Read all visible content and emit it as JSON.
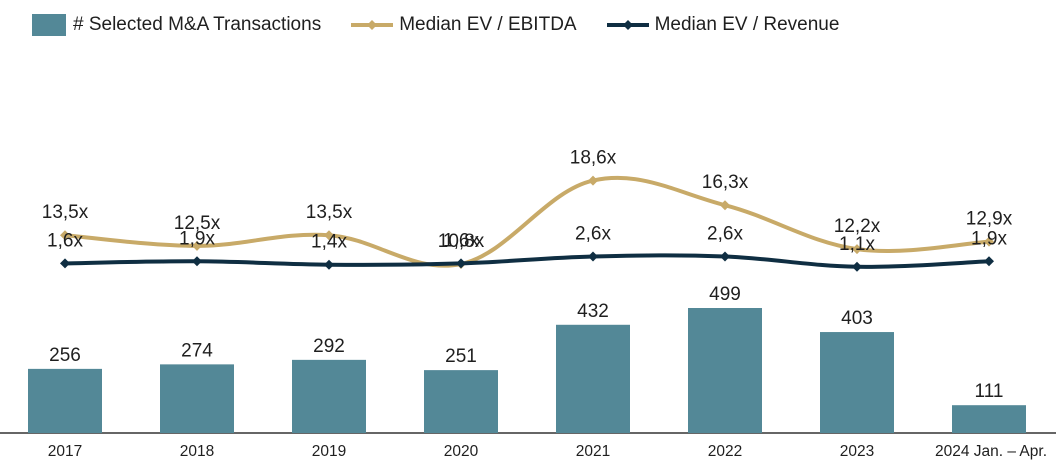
{
  "legend": {
    "bars_label": "# Selected M&A Transactions",
    "ebitda_label": "Median EV / EBITDA",
    "revenue_label": "Median EV / Revenue"
  },
  "colors": {
    "bars": "#538897",
    "ebitda": "#C8AA68",
    "revenue": "#0F2E42",
    "axis": "#333333",
    "text": "#1f1f1f"
  },
  "chart_data": {
    "type": "bar",
    "categories": [
      "2017",
      "2018",
      "2019",
      "2020",
      "2021",
      "2022",
      "2023",
      "2024 Jan. – Apr."
    ],
    "series": [
      {
        "name": "# Selected M&A Transactions",
        "type": "bar",
        "values": [
          256,
          274,
          292,
          251,
          432,
          499,
          403,
          111
        ],
        "labels": [
          "256",
          "274",
          "292",
          "251",
          "432",
          "499",
          "403",
          "111"
        ]
      },
      {
        "name": "Median EV / EBITDA",
        "type": "line",
        "values": [
          13.5,
          12.5,
          13.5,
          10.8,
          18.6,
          16.3,
          12.2,
          12.9
        ],
        "labels": [
          "13,5x",
          "12,5x",
          "13,5x",
          "10,8x",
          "18,6x",
          "16,3x",
          "12,2x",
          "12,9x"
        ]
      },
      {
        "name": "Median EV / Revenue",
        "type": "line",
        "values": [
          1.6,
          1.9,
          1.4,
          1.6,
          2.6,
          2.6,
          1.1,
          1.9
        ],
        "labels": [
          "1,6x",
          "1,9x",
          "1,4x",
          "1,6x",
          "2,6x",
          "2,6x",
          "1,1x",
          "1,9x"
        ]
      }
    ],
    "legend_position": "top-left",
    "grid": false
  }
}
